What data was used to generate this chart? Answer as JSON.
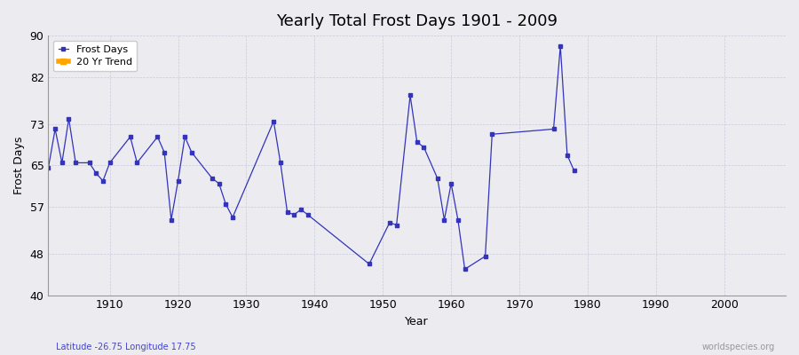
{
  "title": "Yearly Total Frost Days 1901 - 2009",
  "xlabel": "Year",
  "ylabel": "Frost Days",
  "subtitle": "Latitude -26.75 Longitude 17.75",
  "watermark": "worldspecies.org",
  "ylim": [
    40,
    90
  ],
  "yticks": [
    40,
    48,
    57,
    65,
    73,
    82,
    90
  ],
  "xlim": [
    1901,
    2009
  ],
  "xticks": [
    1910,
    1920,
    1930,
    1940,
    1950,
    1960,
    1970,
    1980,
    1990,
    2000
  ],
  "background_color": "#ebebf0",
  "plot_bg_color": "#ebebf0",
  "line_color": "#3333bb",
  "trend_color": "#ffa500",
  "legend_labels": [
    "Frost Days",
    "20 Yr Trend"
  ],
  "data": {
    "1901": 64.5,
    "1902": 72.0,
    "1903": 65.5,
    "1904": 74.0,
    "1905": 65.5,
    "1907": 65.5,
    "1908": 63.5,
    "1909": 62.0,
    "1910": 65.5,
    "1913": 70.5,
    "1914": 65.5,
    "1917": 70.5,
    "1918": 67.5,
    "1919": 54.5,
    "1920": 62.0,
    "1921": 70.5,
    "1922": 67.5,
    "1925": 62.5,
    "1926": 61.5,
    "1927": 57.5,
    "1928": 55.0,
    "1934": 73.5,
    "1935": 65.5,
    "1936": 56.0,
    "1937": 55.5,
    "1938": 56.5,
    "1939": 55.5,
    "1948": 46.0,
    "1951": 54.0,
    "1952": 53.5,
    "1954": 78.5,
    "1955": 69.5,
    "1956": 68.5,
    "1958": 62.5,
    "1959": 54.5,
    "1960": 61.5,
    "1961": 54.5,
    "1962": 45.0,
    "1965": 47.5,
    "1966": 71.0,
    "1975": 72.0,
    "1976": 88.0,
    "1977": 67.0,
    "1978": 64.0
  }
}
